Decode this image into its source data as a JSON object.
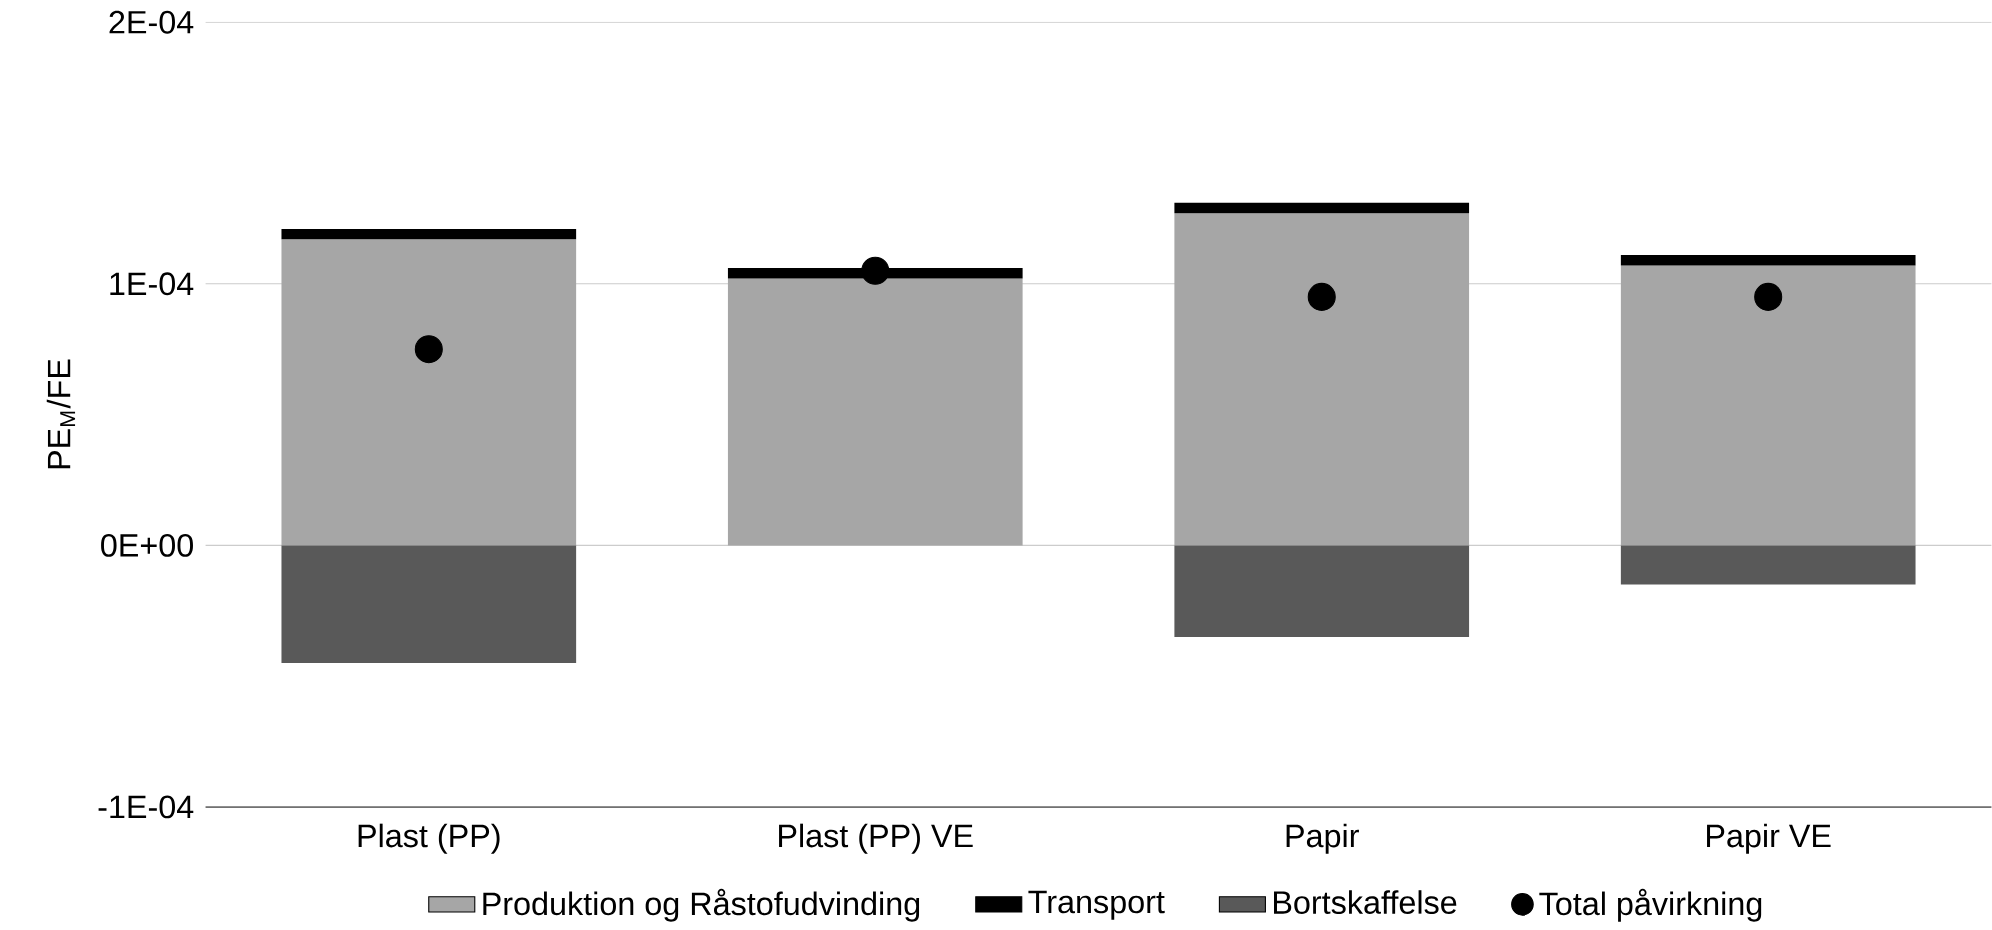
{
  "chart_data": {
    "type": "bar",
    "stacked": true,
    "ylabel": "PE$_{M}$/FE",
    "categories": [
      "Plast (PP)",
      "Plast (PP) VE",
      "Papir",
      "Papir VE"
    ],
    "series": [
      {
        "name": "Produktion og Råstofudvinding",
        "color": "#a6a6a6",
        "values": [
          0.000117,
          0.000102,
          0.000127,
          0.000107
        ]
      },
      {
        "name": "Transport",
        "color": "#000000",
        "values": [
          4e-06,
          4e-06,
          4e-06,
          4e-06
        ]
      },
      {
        "name": "Bortskaffelse",
        "color": "#595959",
        "values": [
          -4.5e-05,
          null,
          -3.5e-05,
          -1.5e-05
        ]
      },
      {
        "name": "Total påvirkning",
        "type": "scatter",
        "color": "#000000",
        "values": [
          7.5e-05,
          0.000105,
          9.5e-05,
          9.5e-05
        ]
      }
    ],
    "ylim": [
      -0.0001,
      0.0002
    ],
    "yticks": [
      {
        "value": -0.0001,
        "label": "-1E-04"
      },
      {
        "value": 0,
        "label": "0E+00"
      },
      {
        "value": 0.0001,
        "label": "1E-04"
      },
      {
        "value": 0.0002,
        "label": "2E-04"
      }
    ],
    "grid": "y",
    "legend": "bottom"
  }
}
